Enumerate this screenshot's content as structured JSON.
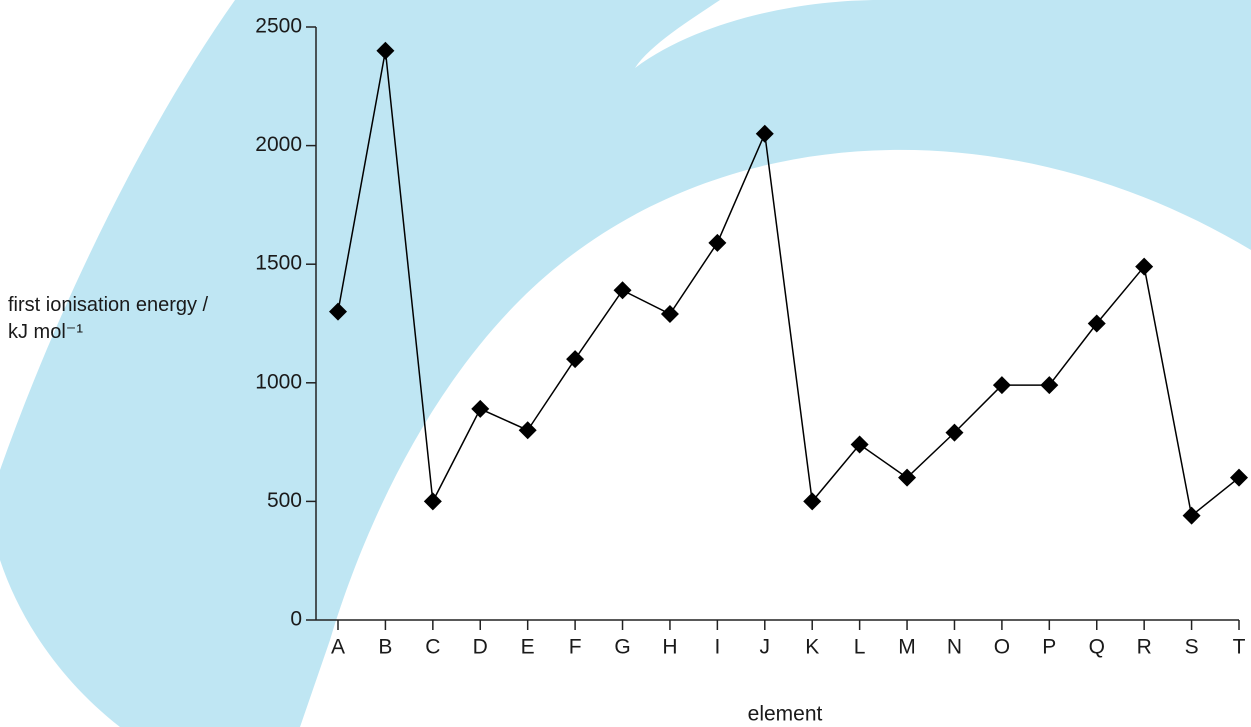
{
  "chart_data": {
    "type": "line",
    "x_label": "element",
    "y_label": "first ionisation energy / kJ mol⁻¹",
    "categories": [
      "A",
      "B",
      "C",
      "D",
      "E",
      "F",
      "G",
      "H",
      "I",
      "J",
      "K",
      "L",
      "M",
      "N",
      "O",
      "P",
      "Q",
      "R",
      "S",
      "T"
    ],
    "values": [
      1300,
      2400,
      500,
      890,
      800,
      1100,
      1390,
      1290,
      1590,
      2050,
      500,
      740,
      600,
      790,
      990,
      990,
      1250,
      1490,
      440,
      600
    ],
    "color": "#000000",
    "ylim": [
      0,
      2500
    ],
    "yticks": [
      0,
      500,
      1000,
      1500,
      2000,
      2500
    ],
    "grid": false
  }
}
